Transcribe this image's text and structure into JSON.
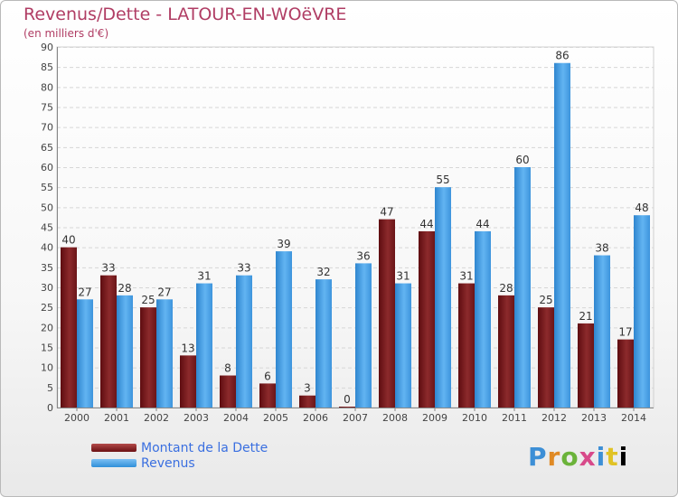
{
  "title": "Revenus/Dette - LATOUR-EN-WOëVRE",
  "subtitle": "(en milliers d'€)",
  "logo": {
    "text": "Proxiti"
  },
  "colors": {
    "debt": "#7a1f22",
    "revenue": "#4aa3ea",
    "title": "#b03d64",
    "legend_text": "#3a6fe0"
  },
  "chart_data": {
    "type": "bar",
    "categories": [
      "2000",
      "2001",
      "2002",
      "2003",
      "2004",
      "2005",
      "2006",
      "2007",
      "2008",
      "2009",
      "2010",
      "2011",
      "2012",
      "2013",
      "2014"
    ],
    "series": [
      {
        "name": "Montant de la Dette",
        "values": [
          40,
          33,
          25,
          13,
          8,
          6,
          3,
          0,
          47,
          44,
          31,
          28,
          25,
          21,
          17
        ]
      },
      {
        "name": "Revenus",
        "values": [
          27,
          28,
          27,
          31,
          33,
          39,
          32,
          36,
          31,
          55,
          44,
          60,
          86,
          38,
          48
        ]
      }
    ],
    "ylim": [
      0,
      90
    ],
    "yticks": [
      0,
      5,
      10,
      15,
      20,
      25,
      30,
      35,
      40,
      45,
      50,
      55,
      60,
      65,
      70,
      75,
      80,
      85,
      90
    ],
    "grid": true,
    "legend_position": "bottom-left"
  }
}
